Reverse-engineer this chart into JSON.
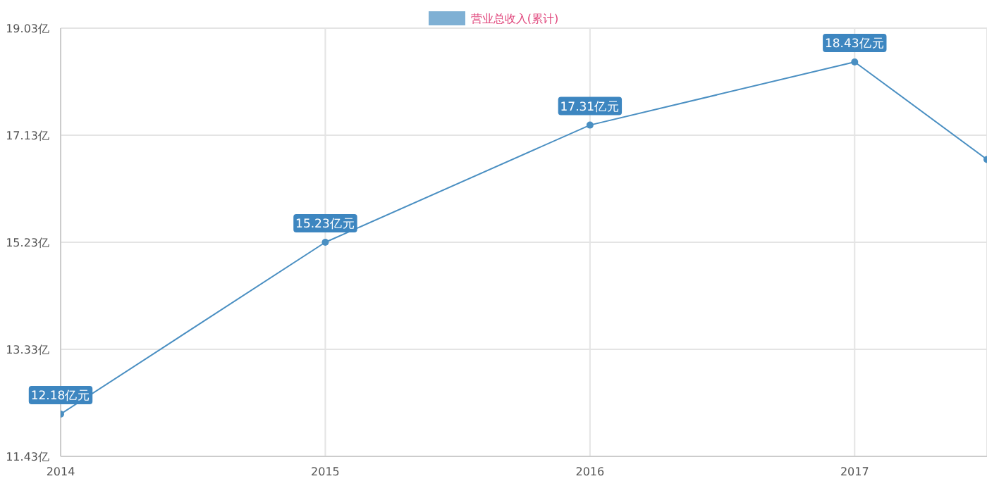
{
  "chart_data": {
    "type": "line",
    "x": [
      2014,
      2015,
      2016,
      2017,
      2017.5
    ],
    "series": [
      {
        "name": "营业总收入(累计)",
        "color": "#4a8fc2",
        "values": [
          12.18,
          15.23,
          17.31,
          18.43,
          16.7
        ],
        "value_labels": [
          "12.18亿元",
          "15.23亿元",
          "17.31亿元",
          "18.43亿元",
          null
        ]
      }
    ],
    "xlim": [
      2014,
      2017.5
    ],
    "xticks": [
      2014,
      2015,
      2016,
      2017
    ],
    "ylim": [
      11.43,
      19.03
    ],
    "yticks": [
      {
        "value": 11.43,
        "label": "11.43亿"
      },
      {
        "value": 13.33,
        "label": "13.33亿"
      },
      {
        "value": 15.23,
        "label": "15.23亿"
      },
      {
        "value": 17.13,
        "label": "17.13亿"
      },
      {
        "value": 19.03,
        "label": "19.03亿"
      }
    ],
    "grid": true,
    "legend": "top",
    "marker": "circle",
    "line_style": "solid"
  }
}
